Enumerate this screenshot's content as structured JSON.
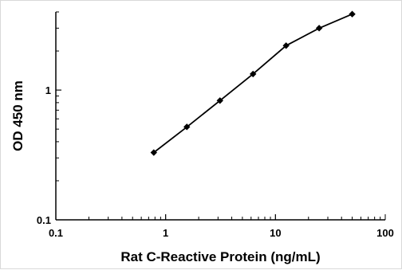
{
  "chart_data": {
    "type": "line",
    "title": "",
    "xlabel": "Rat C-Reactive  Protein (ng/mL)",
    "ylabel": "OD 450 nm",
    "x_scale": "log",
    "y_scale": "log",
    "xlim": [
      0.1,
      100
    ],
    "ylim": [
      0.1,
      4
    ],
    "x_ticks": [
      "0.1",
      "1",
      "10",
      "100"
    ],
    "y_ticks": [
      "0.1",
      "1"
    ],
    "grid": false,
    "legend": "none",
    "marker": "diamond",
    "color": "#000000",
    "series": [
      {
        "x": [
          0.78,
          1.56,
          3.125,
          6.25,
          12.5,
          25,
          50
        ],
        "y": [
          0.33,
          0.52,
          0.83,
          1.33,
          2.2,
          3.0,
          3.85
        ]
      }
    ]
  }
}
